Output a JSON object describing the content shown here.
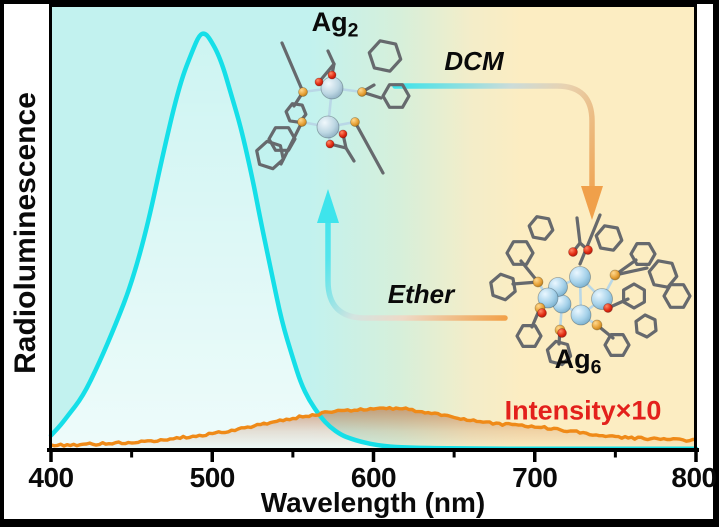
{
  "figure": {
    "y_axis_label": "Radioluminescence",
    "x_axis_label": "Wavelength (nm)",
    "x_ticks": [
      "400",
      "500",
      "600",
      "700",
      "800"
    ],
    "labels": {
      "ag2_main": "Ag",
      "ag2_sub": "2",
      "ag6_main": "Ag",
      "ag6_sub": "6",
      "dcm": "DCM",
      "ether": "Ether",
      "intensity_note": "Intensity×10"
    },
    "colors": {
      "ag2_curve": "#15dfe8",
      "ag6_curve": "#ef8a18",
      "intensity_note_color": "#e3211c",
      "bg_left": "#c2f2ef",
      "bg_right": "#fcedc2",
      "dcm_arrow_start": "#3ae3ea",
      "dcm_arrow_end": "#f0a04a",
      "ether_arrow_start": "#f2a149",
      "ether_arrow_end": "#3ee4ec"
    }
  },
  "chart_data": {
    "type": "area",
    "title": "",
    "xlabel": "Wavelength (nm)",
    "ylabel": "Radioluminescence",
    "xlim": [
      400,
      800
    ],
    "ylim": [
      0,
      1.05
    ],
    "x_ticks": [
      400,
      500,
      600,
      700,
      800
    ],
    "x_minor_ticks": [
      450,
      550,
      650,
      750
    ],
    "grid": false,
    "legend": "none",
    "background": "cyan-to-tan two-tone gradient",
    "annotations": [
      "Ag2",
      "DCM",
      "Ether",
      "Ag6",
      "Intensity×10"
    ],
    "series": [
      {
        "name": "Ag2 cluster radioluminescence",
        "color": "#15dfe8",
        "style": "smooth filled",
        "peak_nm": 495,
        "x": [
          400,
          405,
          410,
          420,
          430,
          440,
          450,
          460,
          470,
          480,
          488,
          492,
          495,
          498,
          505,
          512,
          518,
          525,
          530,
          537,
          543,
          550,
          555,
          560,
          567,
          573,
          580,
          586,
          592,
          600,
          610,
          625,
          650,
          675,
          700,
          730,
          760,
          800
        ],
        "y": [
          0.035,
          0.055,
          0.08,
          0.13,
          0.21,
          0.3,
          0.4,
          0.54,
          0.72,
          0.88,
          0.96,
          0.995,
          1.0,
          0.99,
          0.94,
          0.85,
          0.77,
          0.65,
          0.55,
          0.42,
          0.31,
          0.22,
          0.16,
          0.12,
          0.08,
          0.055,
          0.036,
          0.027,
          0.02,
          0.013,
          0.008,
          0.005,
          0.004,
          0.003,
          0.003,
          0.003,
          0.003,
          0.003
        ]
      },
      {
        "name": "Ag6 cluster radioluminescence (Intensity ×10)",
        "color": "#ef8a18",
        "style": "noisy filled",
        "peak_nm": 610,
        "x": [
          400,
          410,
          420,
          430,
          440,
          450,
          460,
          470,
          480,
          490,
          500,
          510,
          520,
          530,
          540,
          550,
          560,
          570,
          580,
          590,
          600,
          610,
          620,
          630,
          640,
          650,
          660,
          670,
          680,
          690,
          700,
          710,
          720,
          730,
          740,
          750,
          760,
          770,
          780,
          790,
          800
        ],
        "y": [
          0.01,
          0.012,
          0.013,
          0.015,
          0.016,
          0.018,
          0.021,
          0.025,
          0.029,
          0.034,
          0.04,
          0.046,
          0.053,
          0.06,
          0.068,
          0.076,
          0.083,
          0.089,
          0.094,
          0.097,
          0.099,
          0.1,
          0.098,
          0.093,
          0.086,
          0.079,
          0.072,
          0.066,
          0.062,
          0.06,
          0.057,
          0.052,
          0.046,
          0.041,
          0.036,
          0.032,
          0.029,
          0.027,
          0.025,
          0.024,
          0.023
        ]
      }
    ]
  }
}
